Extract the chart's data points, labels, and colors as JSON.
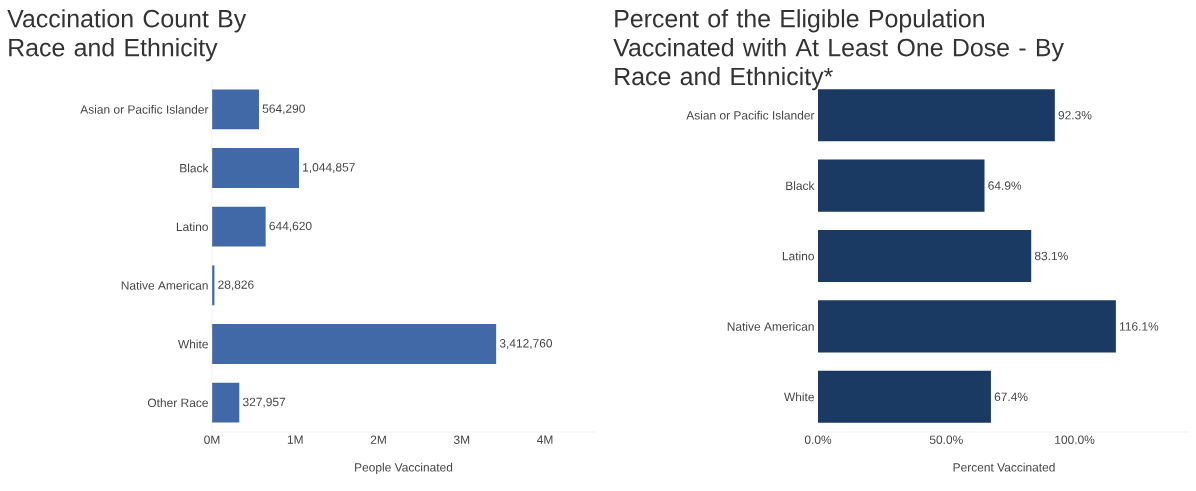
{
  "chart_data": [
    {
      "type": "bar",
      "orientation": "horizontal",
      "title": "Vaccination Count By Race and Ethnicity",
      "xlabel": "People Vaccinated",
      "categories": [
        "Asian or Pacific Islander",
        "Black",
        "Latino",
        "Native American",
        "White",
        "Other Race"
      ],
      "values": [
        564290,
        1044857,
        644620,
        28826,
        3412760,
        327957
      ],
      "value_labels": [
        "564,290",
        "1,044,857",
        "644,620",
        "28,826",
        "3,412,760",
        "327,957"
      ],
      "color": "#4169a8",
      "xlim": [
        0,
        4600000
      ],
      "xticks": [
        {
          "value": 0,
          "label": "0M"
        },
        {
          "value": 1000000,
          "label": "1M"
        },
        {
          "value": 2000000,
          "label": "2M"
        },
        {
          "value": 3000000,
          "label": "3M"
        },
        {
          "value": 4000000,
          "label": "4M"
        }
      ]
    },
    {
      "type": "bar",
      "orientation": "horizontal",
      "title": "Percent of the Eligible Population Vaccinated with At Least One Dose - By Race and Ethnicity*",
      "xlabel": "Percent Vaccinated",
      "categories": [
        "Asian or Pacific Islander",
        "Black",
        "Latino",
        "Native American",
        "White"
      ],
      "values": [
        92.3,
        64.9,
        83.1,
        116.1,
        67.4
      ],
      "value_labels": [
        "92.3%",
        "64.9%",
        "83.1%",
        "116.1%",
        "67.4%"
      ],
      "color": "#1b3a63",
      "xlim": [
        0,
        145
      ],
      "xticks": [
        {
          "value": 0,
          "label": "0.0%"
        },
        {
          "value": 50,
          "label": "50.0%"
        },
        {
          "value": 100,
          "label": "100.0%"
        }
      ]
    }
  ]
}
